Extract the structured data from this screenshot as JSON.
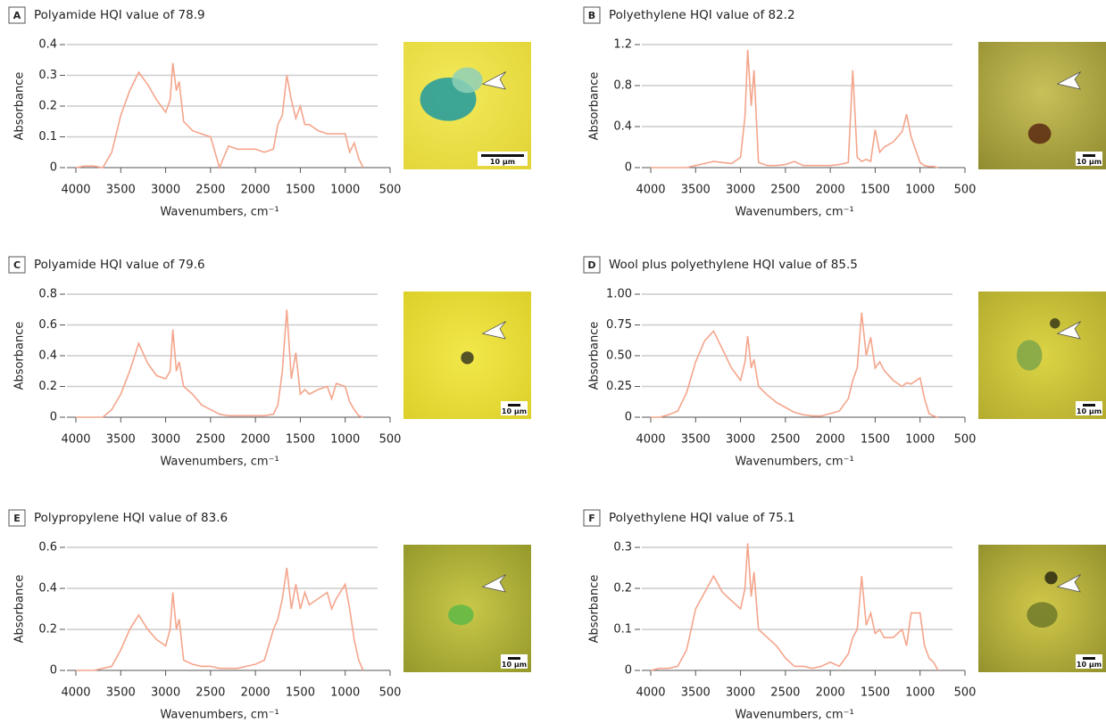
{
  "chart_data": [
    {
      "type": "line",
      "panel": "A",
      "title": "Polyamide HQI value of 78.9",
      "x_label": "Wavenumbers, cm⁻¹",
      "y_label": "Absorbance",
      "scale_bar": "10 µm",
      "color": "#f4a58c",
      "grid": true,
      "xlim": [
        4000,
        500
      ],
      "xticks": [
        4000,
        3500,
        3000,
        2500,
        2000,
        1500,
        1000,
        500
      ],
      "ylim": [
        0,
        0.4
      ],
      "yticks": [
        0,
        0.1,
        0.2,
        0.3,
        0.4
      ],
      "x": [
        4000,
        3900,
        3800,
        3700,
        3600,
        3500,
        3400,
        3300,
        3200,
        3100,
        3000,
        2950,
        2920,
        2880,
        2850,
        2800,
        2700,
        2600,
        2500,
        2400,
        2300,
        2200,
        2100,
        2000,
        1900,
        1800,
        1750,
        1700,
        1650,
        1600,
        1550,
        1500,
        1450,
        1400,
        1300,
        1200,
        1150,
        1100,
        1000,
        950,
        900,
        850,
        800
      ],
      "values": [
        0,
        0.005,
        0.005,
        0,
        0.05,
        0.17,
        0.25,
        0.31,
        0.27,
        0.22,
        0.18,
        0.22,
        0.34,
        0.25,
        0.28,
        0.15,
        0.12,
        0.11,
        0.1,
        0.0,
        0.07,
        0.06,
        0.06,
        0.06,
        0.05,
        0.06,
        0.14,
        0.17,
        0.3,
        0.22,
        0.16,
        0.2,
        0.14,
        0.14,
        0.12,
        0.11,
        0.11,
        0.11,
        0.11,
        0.05,
        0.08,
        0.03,
        0
      ]
    },
    {
      "type": "line",
      "panel": "B",
      "title": "Polyethylene HQI value of 82.2",
      "x_label": "Wavenumbers, cm⁻¹",
      "y_label": "Absorbance",
      "scale_bar": "10 µm",
      "color": "#f4a58c",
      "grid": true,
      "xlim": [
        4000,
        500
      ],
      "xticks": [
        4000,
        3500,
        3000,
        2500,
        2000,
        1500,
        1000,
        500
      ],
      "ylim": [
        0,
        1.2
      ],
      "yticks": [
        0,
        0.4,
        0.8,
        1.2
      ],
      "x": [
        4000,
        3900,
        3800,
        3700,
        3600,
        3500,
        3400,
        3300,
        3200,
        3100,
        3000,
        2950,
        2920,
        2880,
        2850,
        2800,
        2700,
        2600,
        2500,
        2400,
        2300,
        2200,
        2100,
        2000,
        1900,
        1800,
        1750,
        1700,
        1650,
        1600,
        1550,
        1500,
        1450,
        1400,
        1300,
        1200,
        1150,
        1100,
        1000,
        950,
        900,
        850,
        800
      ],
      "values": [
        0,
        0,
        0,
        0,
        0,
        0.02,
        0.04,
        0.06,
        0.05,
        0.04,
        0.1,
        0.5,
        1.15,
        0.6,
        0.95,
        0.05,
        0.02,
        0.02,
        0.03,
        0.06,
        0.02,
        0.02,
        0.02,
        0.02,
        0.03,
        0.05,
        0.95,
        0.1,
        0.06,
        0.08,
        0.06,
        0.37,
        0.15,
        0.2,
        0.25,
        0.35,
        0.52,
        0.3,
        0.05,
        0.02,
        0.01,
        0.01,
        0
      ]
    },
    {
      "type": "line",
      "panel": "C",
      "title": "Polyamide HQI value of 79.6",
      "x_label": "Wavenumbers, cm⁻¹",
      "y_label": "Absorbance",
      "scale_bar": "10 µm",
      "color": "#f4a58c",
      "grid": true,
      "xlim": [
        4000,
        500
      ],
      "xticks": [
        4000,
        3500,
        3000,
        2500,
        2000,
        1500,
        1000,
        500
      ],
      "ylim": [
        0,
        0.8
      ],
      "yticks": [
        0,
        0.2,
        0.4,
        0.6,
        0.8
      ],
      "x": [
        4000,
        3900,
        3800,
        3700,
        3600,
        3500,
        3400,
        3300,
        3200,
        3100,
        3000,
        2950,
        2920,
        2880,
        2850,
        2800,
        2700,
        2600,
        2500,
        2400,
        2300,
        2200,
        2100,
        2000,
        1900,
        1800,
        1750,
        1700,
        1650,
        1600,
        1550,
        1500,
        1450,
        1400,
        1300,
        1200,
        1150,
        1100,
        1000,
        950,
        900,
        850,
        800
      ],
      "values": [
        0,
        0,
        0,
        0,
        0.05,
        0.15,
        0.3,
        0.48,
        0.35,
        0.27,
        0.25,
        0.3,
        0.57,
        0.3,
        0.36,
        0.2,
        0.15,
        0.08,
        0.05,
        0.02,
        0.01,
        0.01,
        0.01,
        0.01,
        0.01,
        0.02,
        0.08,
        0.3,
        0.7,
        0.25,
        0.42,
        0.15,
        0.18,
        0.15,
        0.18,
        0.2,
        0.12,
        0.22,
        0.2,
        0.1,
        0.05,
        0.01,
        0
      ]
    },
    {
      "type": "line",
      "panel": "D",
      "title": "Wool plus polyethylene HQI value of 85.5",
      "x_label": "Wavenumbers, cm⁻¹",
      "y_label": "Absorbance",
      "scale_bar": "10 µm",
      "color": "#f4a58c",
      "grid": true,
      "xlim": [
        4000,
        500
      ],
      "xticks": [
        4000,
        3500,
        3000,
        2500,
        2000,
        1500,
        1000,
        500
      ],
      "ylim": [
        0,
        1
      ],
      "yticks": [
        0,
        {
          "value": 0.25,
          "label": "0.25"
        },
        {
          "value": 0.5,
          "label": "0.50"
        },
        {
          "value": 0.75,
          "label": "0.75"
        },
        {
          "value": 1,
          "label": "1.00"
        }
      ],
      "x": [
        4000,
        3900,
        3800,
        3700,
        3600,
        3500,
        3400,
        3300,
        3200,
        3100,
        3000,
        2950,
        2920,
        2880,
        2850,
        2800,
        2700,
        2600,
        2500,
        2400,
        2300,
        2200,
        2100,
        2000,
        1900,
        1800,
        1750,
        1700,
        1650,
        1600,
        1550,
        1500,
        1450,
        1400,
        1300,
        1200,
        1150,
        1100,
        1000,
        950,
        900,
        850,
        800
      ],
      "values": [
        0,
        0,
        0.02,
        0.05,
        0.2,
        0.45,
        0.62,
        0.7,
        0.55,
        0.4,
        0.3,
        0.45,
        0.66,
        0.4,
        0.47,
        0.25,
        0.18,
        0.12,
        0.08,
        0.04,
        0.02,
        0.01,
        0.01,
        0.03,
        0.05,
        0.15,
        0.3,
        0.4,
        0.85,
        0.5,
        0.65,
        0.4,
        0.45,
        0.38,
        0.3,
        0.25,
        0.28,
        0.27,
        0.32,
        0.15,
        0.03,
        0.01,
        0
      ]
    },
    {
      "type": "line",
      "panel": "E",
      "title": "Polypropylene HQI value of 83.6",
      "x_label": "Wavenumbers, cm⁻¹",
      "y_label": "Absorbance",
      "scale_bar": "10 µm",
      "color": "#f4a58c",
      "grid": true,
      "xlim": [
        4000,
        500
      ],
      "xticks": [
        4000,
        3500,
        3000,
        2500,
        2000,
        1500,
        1000,
        500
      ],
      "ylim": [
        0,
        0.6
      ],
      "yticks": [
        0,
        0.2,
        0.4,
        0.6
      ],
      "x": [
        4000,
        3900,
        3800,
        3700,
        3600,
        3500,
        3400,
        3300,
        3200,
        3100,
        3000,
        2950,
        2920,
        2880,
        2850,
        2800,
        2700,
        2600,
        2500,
        2400,
        2300,
        2200,
        2100,
        2000,
        1900,
        1800,
        1750,
        1700,
        1650,
        1600,
        1550,
        1500,
        1450,
        1400,
        1300,
        1200,
        1150,
        1100,
        1000,
        950,
        900,
        850,
        800
      ],
      "values": [
        0,
        0,
        0,
        0.01,
        0.02,
        0.1,
        0.2,
        0.27,
        0.2,
        0.15,
        0.12,
        0.2,
        0.38,
        0.2,
        0.25,
        0.05,
        0.03,
        0.02,
        0.02,
        0.01,
        0.01,
        0.01,
        0.02,
        0.03,
        0.05,
        0.2,
        0.25,
        0.35,
        0.5,
        0.3,
        0.42,
        0.3,
        0.38,
        0.32,
        0.35,
        0.38,
        0.3,
        0.35,
        0.42,
        0.3,
        0.15,
        0.05,
        0
      ]
    },
    {
      "type": "line",
      "panel": "F",
      "title": "Polyethylene HQI value of 75.1",
      "x_label": "Wavenumbers, cm⁻¹",
      "y_label": "Absorbance",
      "scale_bar": "10 µm",
      "color": "#f4a58c",
      "grid": true,
      "xlim": [
        4000,
        500
      ],
      "xticks": [
        4000,
        3500,
        3000,
        2500,
        2000,
        1500,
        1000,
        500
      ],
      "ylim": [
        0,
        0.3
      ],
      "yticks": [
        0,
        0.1,
        0.2,
        0.3
      ],
      "x": [
        4000,
        3900,
        3800,
        3700,
        3600,
        3500,
        3400,
        3300,
        3200,
        3100,
        3000,
        2950,
        2920,
        2880,
        2850,
        2800,
        2700,
        2600,
        2500,
        2400,
        2300,
        2200,
        2100,
        2000,
        1900,
        1800,
        1750,
        1700,
        1650,
        1600,
        1550,
        1500,
        1450,
        1400,
        1300,
        1200,
        1150,
        1100,
        1000,
        950,
        900,
        850,
        800
      ],
      "values": [
        0,
        0.005,
        0.005,
        0.01,
        0.05,
        0.15,
        0.19,
        0.23,
        0.19,
        0.17,
        0.15,
        0.2,
        0.31,
        0.18,
        0.24,
        0.1,
        0.08,
        0.06,
        0.03,
        0.01,
        0.01,
        0.005,
        0.01,
        0.02,
        0.01,
        0.04,
        0.08,
        0.1,
        0.23,
        0.11,
        0.14,
        0.09,
        0.1,
        0.08,
        0.08,
        0.1,
        0.06,
        0.14,
        0.14,
        0.06,
        0.03,
        0.02,
        0
      ]
    }
  ]
}
